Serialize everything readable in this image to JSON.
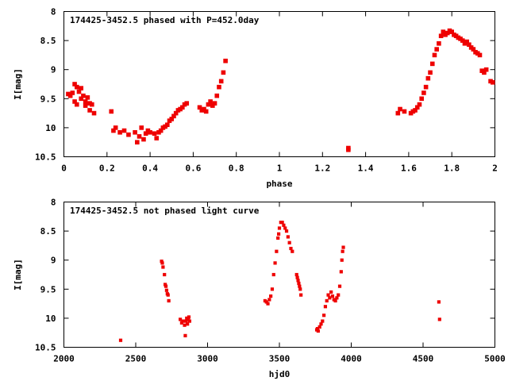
{
  "chart_data": [
    {
      "type": "scatter",
      "title": "174425-3452.5 phased with P=452.0day",
      "xlabel": "phase",
      "ylabel": "I[mag]",
      "xlim": [
        0,
        2
      ],
      "ylim": [
        8,
        10.5
      ],
      "y_inverted": true,
      "grid": false,
      "marker_color": "#ee0000",
      "xticks": [
        "0",
        "0.2",
        "0.4",
        "0.6",
        "0.8",
        "1",
        "1.2",
        "1.4",
        "1.6",
        "1.8",
        "2"
      ],
      "yticks": [
        "8",
        "8.5",
        "9",
        "9.5",
        "10",
        "10.5"
      ],
      "series": [
        {
          "x": [
            0.02,
            0.03,
            0.04,
            0.05,
            0.05,
            0.06,
            0.06,
            0.07,
            0.08,
            0.08,
            0.09,
            0.1,
            0.1,
            0.11,
            0.12,
            0.12,
            0.13,
            0.14,
            0.22,
            0.23,
            0.24,
            0.26,
            0.28,
            0.3,
            0.33,
            0.34,
            0.35,
            0.36,
            0.37,
            0.38,
            0.39,
            0.4,
            0.42,
            0.43,
            0.44,
            0.45,
            0.46,
            0.47,
            0.48,
            0.49,
            0.5,
            0.51,
            0.52,
            0.53,
            0.54,
            0.55,
            0.56,
            0.57,
            0.63,
            0.64,
            0.65,
            0.66,
            0.67,
            0.68,
            0.69,
            0.7,
            0.71,
            0.72,
            0.73,
            0.74,
            0.75,
            1.32,
            1.32,
            1.55,
            1.56,
            1.58,
            1.61,
            1.62,
            1.63,
            1.64,
            1.65,
            1.66,
            1.67,
            1.68,
            1.69,
            1.7,
            1.71,
            1.72,
            1.73,
            1.74,
            1.75,
            1.76,
            1.77,
            1.78,
            1.79,
            1.8,
            1.81,
            1.82,
            1.83,
            1.84,
            1.85,
            1.86,
            1.87,
            1.88,
            1.89,
            1.9,
            1.91,
            1.92,
            1.93,
            1.94,
            1.95,
            1.96,
            1.98,
            1.99
          ],
          "y": [
            9.42,
            9.45,
            9.4,
            9.25,
            9.55,
            9.3,
            9.6,
            9.38,
            9.32,
            9.5,
            9.45,
            9.55,
            9.62,
            9.48,
            9.7,
            9.58,
            9.6,
            9.75,
            9.72,
            10.05,
            10.0,
            10.08,
            10.05,
            10.12,
            10.08,
            10.25,
            10.15,
            10.0,
            10.2,
            10.1,
            10.05,
            10.08,
            10.1,
            10.18,
            10.08,
            10.05,
            10.0,
            9.98,
            9.95,
            9.88,
            9.85,
            9.8,
            9.75,
            9.7,
            9.68,
            9.65,
            9.6,
            9.58,
            9.65,
            9.7,
            9.68,
            9.72,
            9.6,
            9.55,
            9.62,
            9.58,
            9.45,
            9.3,
            9.2,
            9.05,
            8.85,
            10.38,
            10.35,
            9.75,
            9.68,
            9.72,
            9.75,
            9.72,
            9.7,
            9.65,
            9.6,
            9.5,
            9.4,
            9.3,
            9.15,
            9.05,
            8.9,
            8.75,
            8.65,
            8.55,
            8.42,
            8.35,
            8.4,
            8.37,
            8.33,
            8.35,
            8.4,
            8.42,
            8.45,
            8.47,
            8.5,
            8.55,
            8.52,
            8.57,
            8.62,
            8.65,
            8.7,
            8.72,
            8.75,
            9.02,
            9.05,
            9.0,
            9.2,
            9.22
          ]
        }
      ]
    },
    {
      "type": "scatter",
      "title": "174425-3452.5 not phased light curve",
      "xlabel": "hjd0",
      "ylabel": "I[mag]",
      "xlim": [
        2000,
        5000
      ],
      "ylim": [
        8,
        10.5
      ],
      "y_inverted": true,
      "grid": false,
      "marker_color": "#ee0000",
      "xticks": [
        "2000",
        "2500",
        "3000",
        "3500",
        "4000",
        "4500",
        "5000"
      ],
      "yticks": [
        "8",
        "8.5",
        "9",
        "9.5",
        "10",
        "10.5"
      ],
      "series": [
        {
          "x": [
            2395,
            2680,
            2685,
            2690,
            2700,
            2705,
            2710,
            2715,
            2720,
            2725,
            2730,
            2810,
            2820,
            2830,
            2840,
            2845,
            2850,
            2855,
            2860,
            2865,
            2870,
            2875,
            3400,
            3410,
            3420,
            3430,
            3440,
            3450,
            3460,
            3470,
            3480,
            3490,
            3495,
            3500,
            3510,
            3520,
            3530,
            3540,
            3550,
            3560,
            3570,
            3580,
            3590,
            3620,
            3625,
            3630,
            3635,
            3640,
            3645,
            3650,
            3760,
            3765,
            3770,
            3780,
            3790,
            3800,
            3810,
            3820,
            3830,
            3840,
            3850,
            3860,
            3870,
            3880,
            3890,
            3900,
            3910,
            3920,
            3930,
            3935,
            3940,
            3945,
            4610,
            4615
          ],
          "y": [
            10.38,
            9.02,
            9.05,
            9.12,
            9.25,
            9.42,
            9.45,
            9.52,
            9.58,
            9.6,
            9.7,
            10.02,
            10.08,
            10.05,
            10.12,
            10.3,
            10.05,
            10.0,
            10.1,
            10.02,
            9.98,
            10.05,
            9.7,
            9.72,
            9.75,
            9.68,
            9.62,
            9.5,
            9.25,
            9.05,
            8.85,
            8.62,
            8.55,
            8.45,
            8.35,
            8.35,
            8.4,
            8.45,
            8.5,
            8.6,
            8.7,
            8.8,
            8.85,
            9.25,
            9.3,
            9.35,
            9.4,
            9.45,
            9.5,
            9.6,
            10.2,
            10.18,
            10.22,
            10.15,
            10.1,
            10.05,
            9.95,
            9.8,
            9.7,
            9.6,
            9.65,
            9.55,
            9.62,
            9.68,
            9.7,
            9.65,
            9.6,
            9.45,
            9.2,
            9.0,
            8.85,
            8.78,
            9.72,
            10.02
          ]
        }
      ]
    }
  ]
}
